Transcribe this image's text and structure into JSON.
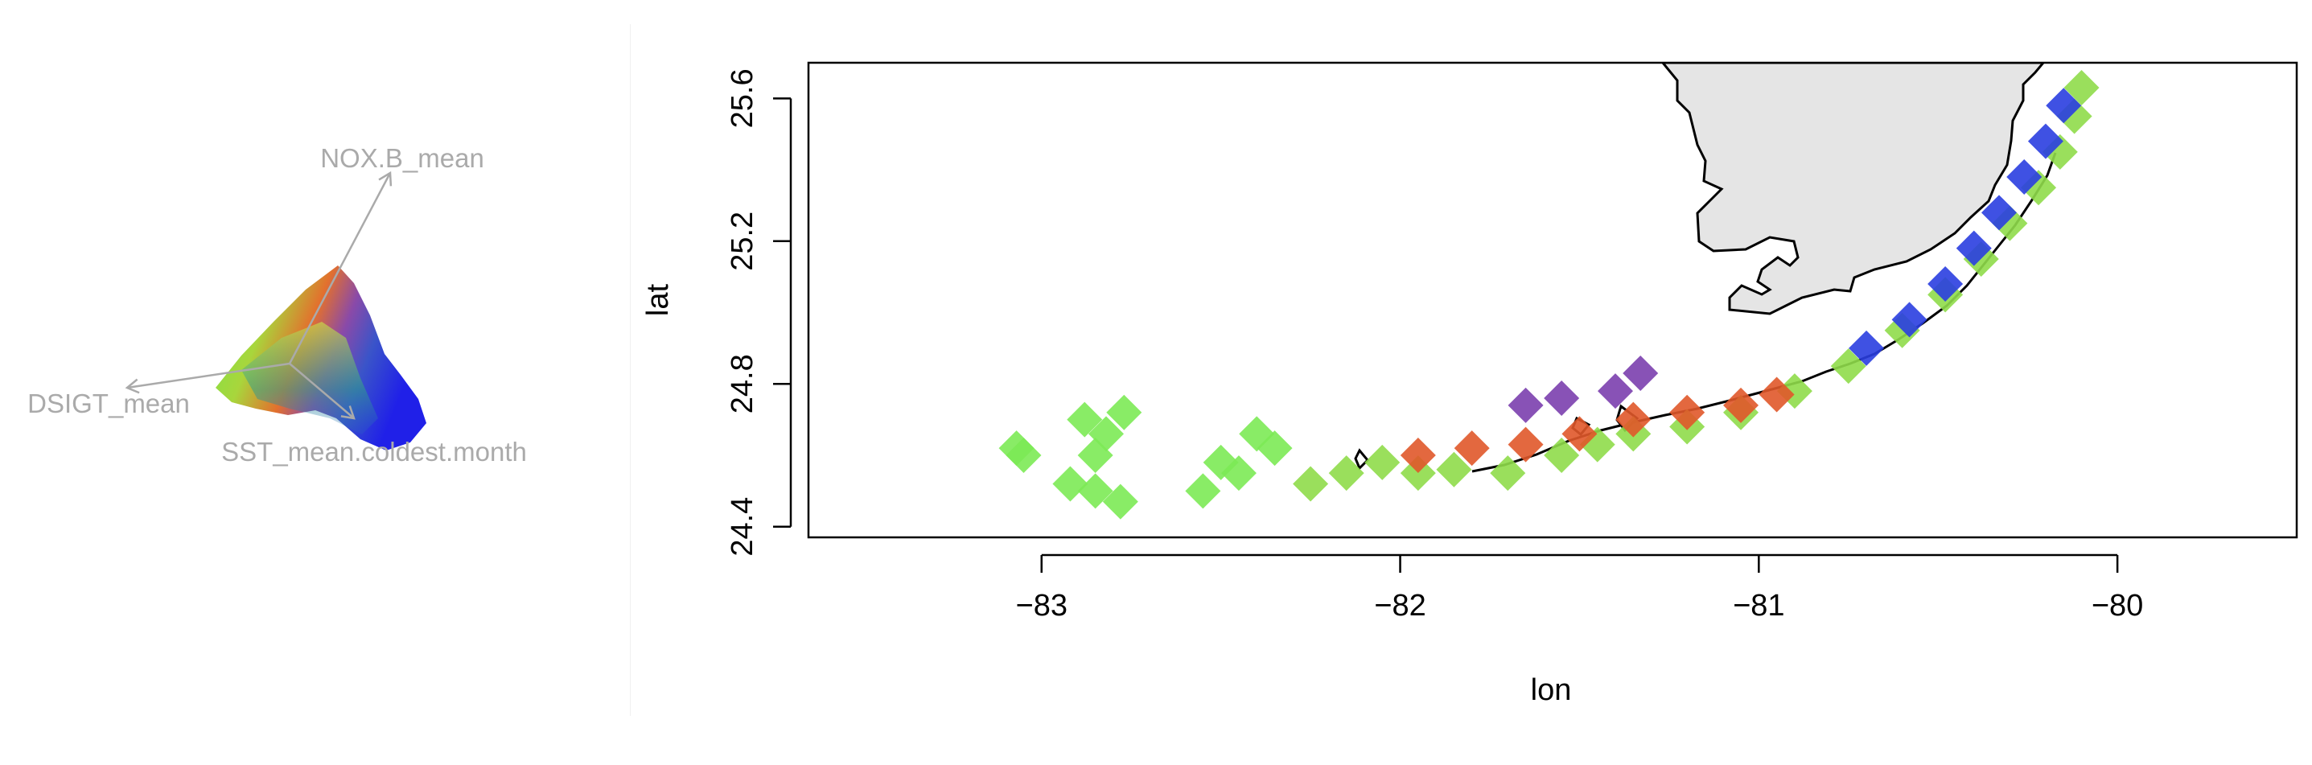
{
  "biplot": {
    "arrows": [
      {
        "label": "NOX.B_mean"
      },
      {
        "label": "DSIGT_mean"
      },
      {
        "label": "SST_mean.coldest.month"
      }
    ],
    "label_color": "#aaaaaa"
  },
  "chart_data": {
    "type": "scatter",
    "xlabel": "lon",
    "ylabel": "lat",
    "xlim": [
      -83.65,
      -79.5
    ],
    "ylim": [
      24.37,
      25.7
    ],
    "xticks": [
      -83,
      -82,
      -81,
      -80
    ],
    "xtick_labels": [
      "−83",
      "−82",
      "−81",
      "−80"
    ],
    "yticks": [
      24.4,
      24.8,
      25.2,
      25.6
    ],
    "ytick_labels": [
      "24.4",
      "24.8",
      "25.2",
      "25.6"
    ],
    "grid": false,
    "land_color": "#e5e5e5",
    "series": [
      {
        "color": "#7cea55",
        "points": [
          [
            -83.07,
            24.62
          ],
          [
            -83.05,
            24.6
          ],
          [
            -82.88,
            24.7
          ],
          [
            -82.82,
            24.66
          ],
          [
            -82.85,
            24.6
          ],
          [
            -82.77,
            24.72
          ],
          [
            -82.92,
            24.52
          ],
          [
            -82.85,
            24.5
          ],
          [
            -82.78,
            24.47
          ],
          [
            -82.55,
            24.5
          ],
          [
            -82.45,
            24.55
          ],
          [
            -82.35,
            24.62
          ],
          [
            -82.4,
            24.66
          ],
          [
            -82.5,
            24.58
          ]
        ]
      },
      {
        "color": "#8fdb4a",
        "points": [
          [
            -82.25,
            24.52
          ],
          [
            -82.15,
            24.55
          ],
          [
            -82.05,
            24.58
          ],
          [
            -81.95,
            24.55
          ],
          [
            -81.85,
            24.56
          ],
          [
            -81.7,
            24.55
          ],
          [
            -81.55,
            24.6
          ],
          [
            -81.45,
            24.63
          ],
          [
            -81.35,
            24.66
          ],
          [
            -81.2,
            24.68
          ],
          [
            -81.05,
            24.72
          ],
          [
            -80.9,
            24.78
          ],
          [
            -80.75,
            24.85
          ],
          [
            -80.6,
            24.95
          ],
          [
            -80.48,
            25.05
          ],
          [
            -80.38,
            25.15
          ],
          [
            -80.3,
            25.25
          ],
          [
            -80.22,
            25.35
          ],
          [
            -80.16,
            25.45
          ],
          [
            -80.12,
            25.55
          ],
          [
            -80.1,
            25.63
          ]
        ]
      },
      {
        "color": "#e0582a",
        "points": [
          [
            -81.95,
            24.6
          ],
          [
            -81.8,
            24.62
          ],
          [
            -81.65,
            24.63
          ],
          [
            -81.5,
            24.66
          ],
          [
            -81.35,
            24.7
          ],
          [
            -81.2,
            24.72
          ],
          [
            -81.05,
            24.74
          ],
          [
            -80.95,
            24.77
          ]
        ]
      },
      {
        "color": "#2a3ee0",
        "points": [
          [
            -80.7,
            24.9
          ],
          [
            -80.58,
            24.98
          ],
          [
            -80.48,
            25.08
          ],
          [
            -80.4,
            25.18
          ],
          [
            -80.33,
            25.28
          ],
          [
            -80.26,
            25.38
          ],
          [
            -80.2,
            25.48
          ],
          [
            -80.15,
            25.58
          ]
        ]
      },
      {
        "color": "#7b3fae",
        "points": [
          [
            -81.65,
            24.74
          ],
          [
            -81.55,
            24.76
          ],
          [
            -81.4,
            24.78
          ],
          [
            -81.33,
            24.83
          ]
        ]
      }
    ]
  }
}
